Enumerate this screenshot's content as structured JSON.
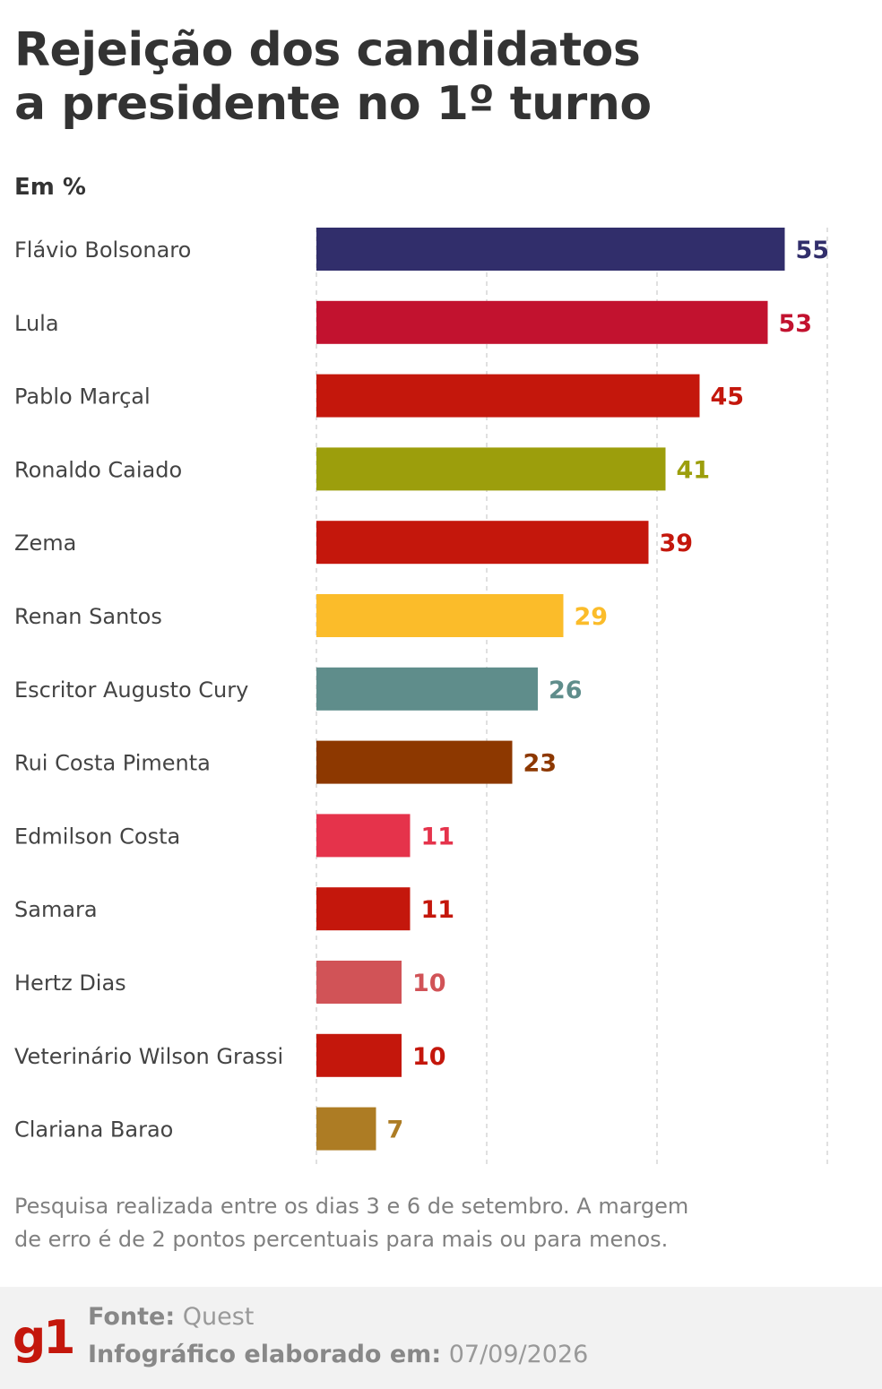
{
  "title": {
    "line1": "Rejeição dos candidatos",
    "line2": "a presidente no 1º turno"
  },
  "unit_label": "Em %",
  "chart_data": {
    "type": "bar",
    "orientation": "horizontal",
    "title": "Rejeição dos candidatos a presidente no 1º turno",
    "ylabel": "Em %",
    "xlim": [
      0,
      60
    ],
    "grid": true,
    "categories": [
      "Flávio Bolsonaro",
      "Lula",
      "Pablo Marçal",
      "Ronaldo Caiado",
      "Zema",
      "Renan Santos",
      "Escritor Augusto Cury",
      "Rui Costa Pimenta",
      "Edmilson Costa",
      "Samara",
      "Hertz Dias",
      "Veterinário Wilson Grassi",
      "Clariana Barao"
    ],
    "values": [
      55,
      53,
      45,
      41,
      39,
      29,
      26,
      23,
      11,
      11,
      10,
      10,
      7
    ],
    "colors": [
      "#312e6b",
      "#c2122f",
      "#c4170c",
      "#9c9e0c",
      "#c4170c",
      "#fbbc2a",
      "#5f8d8b",
      "#8d3800",
      "#e5334b",
      "#c4170c",
      "#d15357",
      "#c4170c",
      "#ad7c24"
    ]
  },
  "note": {
    "line1": "Pesquisa realizada entre os dias 3 e 6 de setembro. A margem",
    "line2": "de erro é de 2 pontos percentuais para mais ou para menos."
  },
  "footer": {
    "logo": "g1",
    "source_label": "Fonte:",
    "source_value": "Quest",
    "date_label": "Infográfico elaborado em:",
    "date_value": "07/09/2026"
  }
}
